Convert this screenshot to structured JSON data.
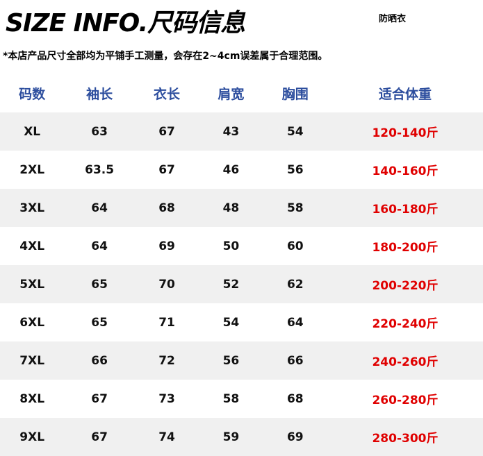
{
  "title": "SIZE INFO.尺码信息",
  "product_tag": "防晒衣",
  "note": "*本店产品尺寸全部均为平铺手工测量，会存在2~4cm误差属于合理范围。",
  "colors": {
    "header": "#2d4e9e",
    "weight": "#e00000",
    "stripe": "#f0f0f0"
  },
  "table": {
    "headers": [
      "码数",
      "袖长",
      "衣长",
      "肩宽",
      "胸围",
      "适合体重"
    ],
    "rows": [
      [
        "XL",
        "63",
        "67",
        "43",
        "54",
        "120-140斤"
      ],
      [
        "2XL",
        "63.5",
        "67",
        "46",
        "56",
        "140-160斤"
      ],
      [
        "3XL",
        "64",
        "68",
        "48",
        "58",
        "160-180斤"
      ],
      [
        "4XL",
        "64",
        "69",
        "50",
        "60",
        "180-200斤"
      ],
      [
        "5XL",
        "65",
        "70",
        "52",
        "62",
        "200-220斤"
      ],
      [
        "6XL",
        "65",
        "71",
        "54",
        "64",
        "220-240斤"
      ],
      [
        "7XL",
        "66",
        "72",
        "56",
        "66",
        "240-260斤"
      ],
      [
        "8XL",
        "67",
        "73",
        "58",
        "68",
        "260-280斤"
      ],
      [
        "9XL",
        "67",
        "74",
        "59",
        "69",
        "280-300斤"
      ]
    ]
  }
}
